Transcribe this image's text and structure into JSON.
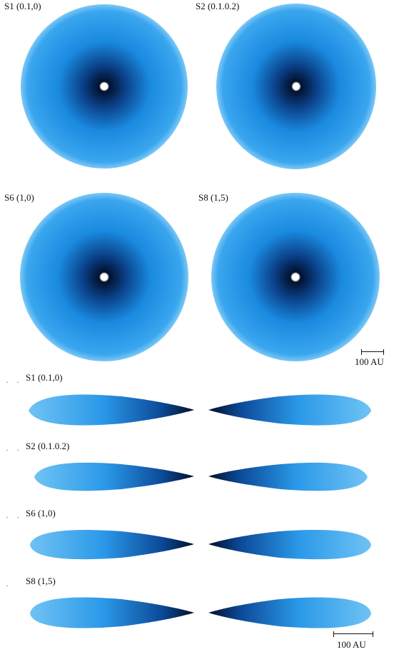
{
  "face_on_labels": [
    "S1 (0.1,0)",
    "S2 (0.1.0.2)",
    "S6 (1,0)",
    "S8 (1,5)"
  ],
  "edge_on_labels": [
    "S1 (0.1,0)",
    "S2 (0.1.0.2)",
    "S6 (1,0)",
    "S8 (1,5)"
  ],
  "scale_top": "100 AU",
  "scale_bottom": "100 AU",
  "colors": {
    "outer": "#5ab8f2",
    "mid": "#1a8ae0",
    "inner": "#0a3f86",
    "core": "#02112e",
    "star": "#ffffff"
  }
}
